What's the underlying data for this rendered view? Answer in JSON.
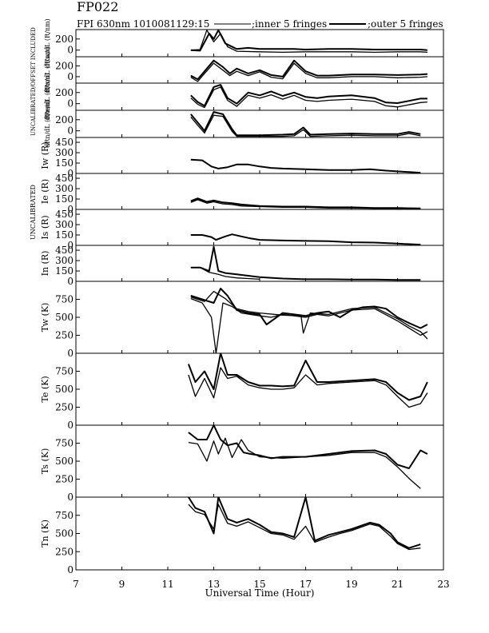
{
  "header": {
    "title": "FP022",
    "subtitle": "FPI 630nm 1010081129:15",
    "legend_inner": ";inner 5 fringes",
    "legend_outer": ";outer 5 fringes"
  },
  "side_labels": {
    "left_top": "UNCALIBRATED/OFFSET INCLUDED",
    "left_mid": "UNCALIBRATED"
  },
  "xaxis": {
    "label": "Universal Time (Hour)",
    "ticks": [
      "7",
      "9",
      "11",
      "13",
      "15",
      "17",
      "19",
      "21",
      "23"
    ],
    "range": [
      7,
      23
    ]
  },
  "chart_data": [
    {
      "type": "line",
      "ylabel": "dRw/dL (R/nm)",
      "ylim": [
        -120,
        370
      ],
      "yticks": [
        0,
        200
      ],
      "series": [
        {
          "x": [
            12.0,
            12.4,
            12.8,
            13.0,
            13.2,
            13.5,
            14.0,
            14.5,
            15.0,
            15.5,
            16.0,
            16.5,
            17.0,
            18.0,
            19.0,
            20.0,
            21.0,
            21.5,
            22.0,
            22.3
          ],
          "y": [
            0,
            -10,
            300,
            200,
            360,
            120,
            20,
            40,
            20,
            20,
            20,
            20,
            10,
            20,
            20,
            10,
            10,
            10,
            10,
            0
          ]
        },
        {
          "x": [
            12.0,
            12.4,
            12.7,
            13.0,
            13.3,
            13.6,
            14.0,
            15.0,
            16.0,
            17.0,
            18.0,
            19.0,
            20.0,
            21.0,
            22.0,
            22.3
          ],
          "y": [
            0,
            10,
            360,
            150,
            300,
            60,
            -20,
            -30,
            -40,
            -30,
            -30,
            -30,
            -40,
            -30,
            -30,
            -40
          ]
        }
      ]
    },
    {
      "type": "line",
      "ylabel": "dRs/dL (R/nm)",
      "ylim": [
        -120,
        370
      ],
      "yticks": [
        0,
        200
      ],
      "series": [
        {
          "x": [
            12.0,
            12.3,
            12.6,
            13.0,
            13.4,
            13.7,
            14.0,
            14.5,
            15.0,
            15.5,
            16.0,
            16.5,
            17.0,
            17.5,
            18.0,
            19.0,
            20.0,
            21.0,
            22.0,
            22.3
          ],
          "y": [
            20,
            -50,
            100,
            300,
            180,
            60,
            150,
            60,
            120,
            30,
            0,
            300,
            100,
            20,
            20,
            40,
            40,
            30,
            40,
            50
          ]
        },
        {
          "x": [
            12.0,
            12.3,
            12.6,
            13.0,
            13.4,
            13.7,
            14.0,
            14.5,
            15.0,
            15.5,
            16.0,
            16.5,
            17.0,
            17.5,
            18.0,
            19.0,
            20.0,
            21.0,
            22.0,
            22.3
          ],
          "y": [
            -10,
            -90,
            60,
            250,
            120,
            20,
            100,
            20,
            90,
            -10,
            -40,
            250,
            60,
            -20,
            -20,
            0,
            0,
            -20,
            -10,
            0
          ]
        }
      ]
    },
    {
      "type": "line",
      "ylabel": "dRe/dL (R/nm)",
      "ylim": [
        -120,
        370
      ],
      "yticks": [
        0,
        200
      ],
      "series": [
        {
          "x": [
            12.0,
            12.3,
            12.6,
            13.0,
            13.3,
            13.6,
            14.0,
            14.5,
            15.0,
            15.5,
            16.0,
            16.5,
            17.0,
            17.5,
            18.0,
            19.0,
            20.0,
            20.5,
            21.0,
            22.0,
            22.3
          ],
          "y": [
            150,
            30,
            -40,
            300,
            340,
            100,
            0,
            200,
            150,
            220,
            140,
            200,
            120,
            100,
            130,
            150,
            100,
            20,
            10,
            90,
            90
          ]
        },
        {
          "x": [
            12.0,
            12.3,
            12.6,
            13.0,
            13.3,
            13.6,
            14.0,
            14.5,
            15.0,
            15.5,
            16.0,
            16.5,
            17.0,
            17.5,
            18.0,
            19.0,
            20.0,
            20.5,
            21.0,
            22.0,
            22.3
          ],
          "y": [
            100,
            -10,
            -70,
            250,
            300,
            60,
            -50,
            150,
            100,
            160,
            80,
            150,
            60,
            40,
            60,
            80,
            40,
            -40,
            -60,
            20,
            30
          ]
        }
      ]
    },
    {
      "type": "line",
      "ylabel": "dRn/dL (R/nm)",
      "ylim": [
        -120,
        370
      ],
      "yticks": [
        0,
        200
      ],
      "series": [
        {
          "x": [
            12.0,
            12.3,
            12.6,
            13.0,
            13.4,
            13.8,
            14.0,
            15.0,
            16.0,
            16.5,
            16.9,
            17.2,
            18.0,
            19.0,
            20.0,
            21.0,
            21.5,
            22.0
          ],
          "y": [
            300,
            150,
            0,
            340,
            300,
            30,
            -80,
            -80,
            -70,
            -60,
            60,
            -70,
            -60,
            -50,
            -60,
            -60,
            -20,
            -60
          ]
        },
        {
          "x": [
            12.0,
            12.3,
            12.6,
            13.0,
            13.4,
            13.8,
            14.0,
            15.0,
            16.0,
            16.5,
            16.9,
            17.2,
            18.0,
            19.0,
            20.0,
            21.0,
            21.5,
            22.0
          ],
          "y": [
            250,
            100,
            -40,
            280,
            260,
            -10,
            -100,
            -100,
            -100,
            -90,
            20,
            -100,
            -90,
            -80,
            -90,
            -90,
            -50,
            -90
          ]
        }
      ]
    },
    {
      "type": "line",
      "ylabel": "Iw (R)",
      "ylim": [
        0,
        520
      ],
      "yticks": [
        0,
        150,
        300,
        450
      ],
      "series": [
        {
          "x": [
            12.0,
            12.5,
            12.9,
            13.2,
            13.6,
            14.0,
            14.5,
            15.0,
            15.5,
            16.0,
            17.0,
            18.0,
            19.0,
            19.8,
            20.5,
            21.0,
            21.5,
            22.0
          ],
          "y": [
            200,
            190,
            100,
            70,
            90,
            130,
            130,
            100,
            80,
            70,
            60,
            50,
            50,
            60,
            40,
            30,
            20,
            10
          ]
        }
      ]
    },
    {
      "type": "line",
      "ylabel": "Ie (R)",
      "ylim": [
        0,
        520
      ],
      "yticks": [
        0,
        150,
        300,
        450
      ],
      "series": [
        {
          "x": [
            12.0,
            12.3,
            12.7,
            13.0,
            13.4,
            13.8,
            14.2,
            15.0,
            16.0,
            17.0,
            18.0,
            19.0,
            20.0,
            21.0,
            22.0
          ],
          "y": [
            120,
            160,
            110,
            130,
            100,
            90,
            70,
            50,
            40,
            40,
            30,
            30,
            20,
            20,
            15
          ]
        },
        {
          "x": [
            12.0,
            12.3,
            12.7,
            13.0,
            13.4,
            13.8,
            14.2,
            15.0,
            16.0,
            17.0,
            18.0,
            19.0,
            20.0,
            21.0,
            22.0
          ],
          "y": [
            100,
            140,
            90,
            110,
            80,
            70,
            50,
            40,
            30,
            30,
            20,
            20,
            15,
            15,
            10
          ]
        }
      ]
    },
    {
      "type": "line",
      "ylabel": "Is (R)",
      "ylim": [
        0,
        520
      ],
      "yticks": [
        0,
        150,
        300,
        450
      ],
      "series": [
        {
          "x": [
            12.0,
            12.5,
            12.9,
            13.1,
            13.5,
            13.8,
            14.2,
            14.6,
            15.0,
            15.5,
            16.0,
            17.0,
            18.0,
            19.0,
            20.0,
            21.0,
            22.0
          ],
          "y": [
            150,
            150,
            120,
            80,
            130,
            160,
            130,
            100,
            80,
            75,
            70,
            65,
            60,
            45,
            40,
            25,
            10
          ]
        }
      ]
    },
    {
      "type": "line",
      "ylabel": "In (R)",
      "ylim": [
        0,
        520
      ],
      "yticks": [
        0,
        150,
        300,
        450
      ],
      "series": [
        {
          "x": [
            12.0,
            12.4,
            12.8,
            13.0,
            13.2,
            13.5,
            14.0,
            15.0,
            16.0,
            17.0,
            18.0,
            19.0,
            20.0,
            21.0,
            22.0
          ],
          "y": [
            200,
            200,
            150,
            500,
            150,
            120,
            100,
            60,
            40,
            30,
            30,
            25,
            25,
            20,
            20
          ]
        },
        {
          "x": [
            12.0,
            12.4,
            12.8,
            13.2,
            13.5,
            14.0,
            15.0
          ],
          "y": [
            200,
            200,
            130,
            100,
            70,
            50,
            30
          ]
        }
      ]
    },
    {
      "type": "line",
      "ylabel": "Tw (K)",
      "ylim": [
        0,
        1000
      ],
      "yticks": [
        0,
        250,
        500,
        750
      ],
      "series": [
        {
          "x": [
            12.0,
            12.5,
            13.0,
            13.3,
            13.6,
            14.0,
            14.5,
            15.0,
            15.3,
            16.0,
            16.5,
            17.0,
            17.5,
            18.0,
            18.5,
            19.0,
            19.5,
            20.0,
            20.5,
            21.0,
            21.5,
            22.0,
            22.3
          ],
          "y": [
            800,
            750,
            700,
            900,
            800,
            600,
            560,
            540,
            400,
            560,
            540,
            520,
            560,
            580,
            500,
            600,
            640,
            650,
            620,
            500,
            420,
            350,
            400
          ]
        },
        {
          "x": [
            12.0,
            12.5,
            12.9,
            13.1,
            13.4,
            13.8,
            14.2,
            15.0,
            15.5,
            16.0,
            17.0,
            17.5,
            18.0,
            19.0,
            20.0,
            21.0,
            22.0,
            22.3
          ],
          "y": [
            760,
            700,
            500,
            0,
            700,
            650,
            560,
            520,
            500,
            540,
            500,
            540,
            520,
            600,
            620,
            450,
            250,
            300
          ]
        },
        {
          "x": [
            12.0,
            12.6,
            13.0,
            13.5,
            14.0,
            14.5,
            15.0,
            16.0,
            16.8,
            16.9,
            17.2,
            18.0,
            19.0,
            20.0,
            21.0,
            21.5,
            22.0,
            22.3
          ],
          "y": [
            780,
            720,
            860,
            760,
            620,
            580,
            560,
            530,
            520,
            280,
            560,
            540,
            620,
            640,
            480,
            380,
            300,
            200
          ]
        }
      ]
    },
    {
      "type": "line",
      "ylabel": "Te (K)",
      "ylim": [
        0,
        1000
      ],
      "yticks": [
        0,
        250,
        500,
        750
      ],
      "series": [
        {
          "x": [
            11.9,
            12.2,
            12.6,
            13.0,
            13.3,
            13.6,
            14.0,
            14.5,
            15.0,
            15.5,
            16.0,
            16.5,
            17.0,
            17.5,
            18.0,
            19.0,
            20.0,
            20.5,
            21.0,
            21.5,
            22.0,
            22.3
          ],
          "y": [
            850,
            600,
            750,
            500,
            1000,
            700,
            700,
            600,
            550,
            550,
            540,
            550,
            900,
            600,
            600,
            620,
            640,
            600,
            450,
            350,
            400,
            600
          ]
        },
        {
          "x": [
            11.9,
            12.2,
            12.6,
            13.0,
            13.3,
            13.6,
            14.0,
            14.5,
            15.0,
            15.5,
            16.0,
            16.5,
            17.0,
            17.5,
            18.0,
            19.0,
            20.0,
            20.5,
            21.0,
            21.5,
            22.0,
            22.3
          ],
          "y": [
            700,
            400,
            650,
            380,
            800,
            650,
            680,
            560,
            520,
            500,
            500,
            520,
            700,
            560,
            580,
            600,
            620,
            560,
            400,
            250,
            300,
            450
          ]
        }
      ]
    },
    {
      "type": "line",
      "ylabel": "Ts (K)",
      "ylim": [
        0,
        1000
      ],
      "yticks": [
        0,
        250,
        500,
        750
      ],
      "series": [
        {
          "x": [
            11.9,
            12.3,
            12.7,
            13.0,
            13.3,
            13.6,
            14.0,
            14.3,
            14.6,
            15.0,
            15.5,
            16.0,
            17.0,
            18.0,
            19.0,
            20.0,
            20.5,
            21.0,
            21.5,
            22.0,
            22.3
          ],
          "y": [
            900,
            800,
            800,
            1000,
            800,
            720,
            750,
            620,
            600,
            580,
            540,
            560,
            560,
            600,
            640,
            650,
            600,
            450,
            400,
            650,
            600
          ]
        },
        {
          "x": [
            11.9,
            12.3,
            12.7,
            13.0,
            13.2,
            13.5,
            13.8,
            14.2,
            14.5,
            15.0,
            16.0,
            17.0,
            18.0,
            19.0,
            20.0,
            20.5,
            21.0,
            21.5,
            22.0
          ],
          "y": [
            760,
            740,
            500,
            780,
            600,
            820,
            550,
            800,
            650,
            560,
            540,
            560,
            580,
            620,
            620,
            560,
            420,
            260,
            120
          ]
        }
      ]
    },
    {
      "type": "line",
      "ylabel": "Tn (K)",
      "ylim": [
        0,
        1000
      ],
      "yticks": [
        0,
        250,
        500,
        750
      ],
      "series": [
        {
          "x": [
            11.9,
            12.2,
            12.6,
            13.0,
            13.2,
            13.6,
            14.0,
            14.5,
            15.0,
            15.5,
            16.0,
            16.5,
            17.0,
            17.4,
            18.0,
            18.5,
            19.0,
            19.8,
            20.2,
            20.7,
            21.0,
            21.5,
            22.0
          ],
          "y": [
            1000,
            850,
            800,
            500,
            1000,
            700,
            650,
            700,
            620,
            520,
            500,
            450,
            1000,
            400,
            480,
            520,
            560,
            650,
            620,
            500,
            380,
            300,
            350
          ]
        },
        {
          "x": [
            11.9,
            12.2,
            12.6,
            13.0,
            13.2,
            13.6,
            14.0,
            14.5,
            15.0,
            15.5,
            16.0,
            16.5,
            17.0,
            17.4,
            18.0,
            18.5,
            19.0,
            19.8,
            20.2,
            20.7,
            21.0,
            21.5,
            22.0
          ],
          "y": [
            900,
            800,
            760,
            560,
            900,
            640,
            600,
            660,
            580,
            500,
            480,
            420,
            600,
            380,
            450,
            500,
            540,
            630,
            600,
            460,
            360,
            280,
            300
          ]
        }
      ]
    }
  ]
}
